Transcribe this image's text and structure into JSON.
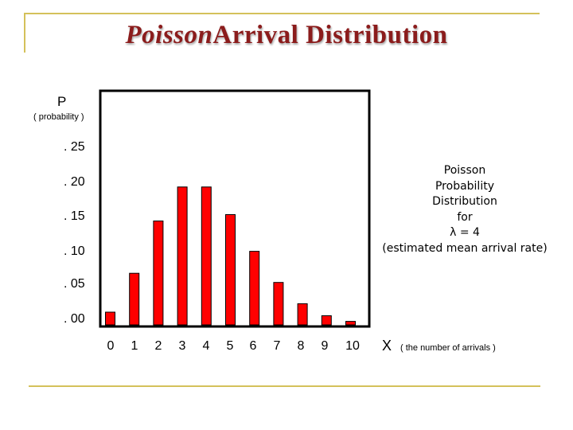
{
  "title": {
    "word1": "Poisson",
    "rest": "Arrival Distribution"
  },
  "y_axis": {
    "label": "P",
    "sublabel": "( probability )"
  },
  "x_axis": {
    "label": "X",
    "sublabel": "( the number of arrivals )"
  },
  "annotation": [
    "Poisson",
    "Probability",
    "Distribution",
    "for",
    "λ = 4",
    "(estimated mean arrival rate)"
  ],
  "colors": {
    "bar": "#ff0000",
    "frame": "#d4c15a",
    "title": "#8b1c1c"
  },
  "chart_data": {
    "type": "bar",
    "title": "Poisson Arrival Distribution",
    "xlabel": "X ( the number of arrivals )",
    "ylabel": "P ( probability )",
    "categories": [
      "0",
      "1",
      "2",
      "3",
      "4",
      "5",
      "6",
      "7",
      "8",
      "9",
      "10"
    ],
    "values": [
      0.018,
      0.073,
      0.147,
      0.195,
      0.195,
      0.156,
      0.104,
      0.06,
      0.03,
      0.013,
      0.005
    ],
    "ylim": [
      0,
      0.25
    ],
    "yticks": [
      ". 25",
      ". 20",
      ". 15",
      ". 10",
      ". 05",
      ". 00"
    ],
    "grid": false,
    "legend": "none"
  }
}
